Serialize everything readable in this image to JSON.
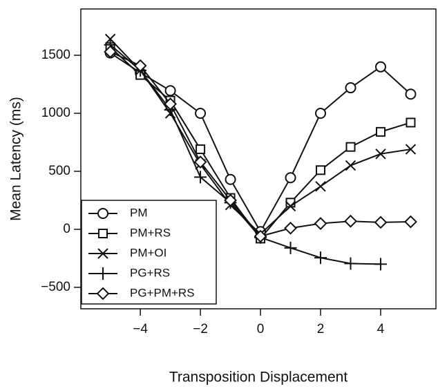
{
  "chart_data": {
    "type": "line",
    "x_label": "Transposition Displacement",
    "y_label": "Mean Latency (ms)",
    "x": [
      -5,
      -4,
      -3,
      -2,
      -1,
      0,
      1,
      2,
      3,
      4,
      5
    ],
    "xlim": [
      -5.98,
      5.84
    ],
    "ylim": [
      -685,
      1899
    ],
    "xticks": [
      {
        "value": -4,
        "label": "−4"
      },
      {
        "value": -2,
        "label": "−2"
      },
      0,
      2,
      4
    ],
    "yticks": [
      {
        "value": -500,
        "label": "−500"
      },
      0,
      500,
      1000,
      1500
    ],
    "legend_position": "bottom-left",
    "series": [
      {
        "name": "PM",
        "color": "#111111",
        "marker": "circle",
        "values": [
          1520,
          1350,
          1195,
          1000,
          430,
          -20,
          445,
          1000,
          1220,
          1400,
          1165
        ]
      },
      {
        "name": "PM+RS",
        "color": "#111111",
        "marker": "square",
        "values": [
          1570,
          1330,
          1110,
          690,
          270,
          -80,
          230,
          510,
          710,
          840,
          920
        ]
      },
      {
        "name": "PM+OI",
        "color": "#111111",
        "marker": "cross",
        "values": [
          1640,
          1370,
          1000,
          560,
          210,
          -40,
          200,
          370,
          550,
          650,
          690
        ]
      },
      {
        "name": "PG+RS",
        "color": "#111111",
        "marker": "plus",
        "values": [
          1590,
          1370,
          1030,
          450,
          230,
          -70,
          -160,
          -245,
          -295,
          -300,
          null
        ]
      },
      {
        "name": "PG+PM+RS",
        "color": "#111111",
        "marker": "diamond",
        "values": [
          1530,
          1410,
          1080,
          580,
          250,
          -60,
          10,
          50,
          70,
          60,
          65
        ]
      }
    ]
  }
}
